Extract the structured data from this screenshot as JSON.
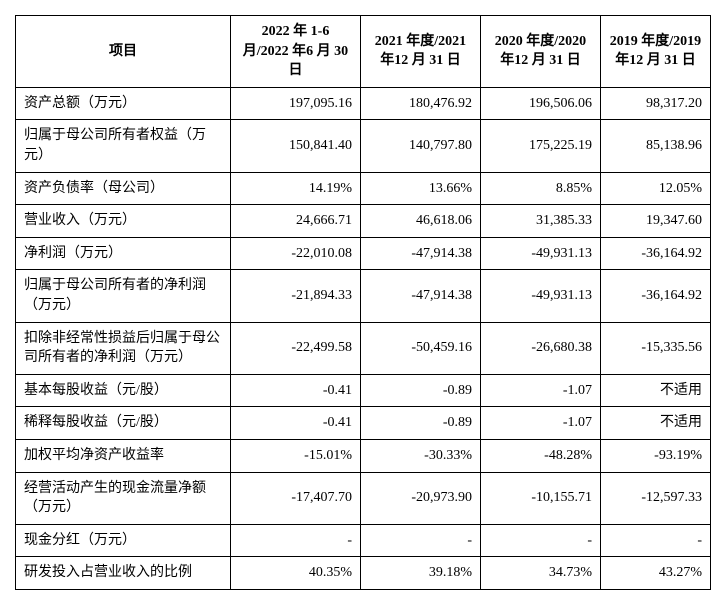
{
  "table": {
    "columns": [
      "项目",
      "2022 年 1-6 月/2022 年6 月 30 日",
      "2021 年度/2021 年12 月 31 日",
      "2020 年度/2020 年12 月 31 日",
      "2019 年度/2019 年12 月 31 日"
    ],
    "rows": [
      {
        "label": "资产总额（万元）",
        "values": [
          "197,095.16",
          "180,476.92",
          "196,506.06",
          "98,317.20"
        ]
      },
      {
        "label": "归属于母公司所有者权益（万元）",
        "values": [
          "150,841.40",
          "140,797.80",
          "175,225.19",
          "85,138.96"
        ]
      },
      {
        "label": "资产负债率（母公司）",
        "values": [
          "14.19%",
          "13.66%",
          "8.85%",
          "12.05%"
        ]
      },
      {
        "label": "营业收入（万元）",
        "values": [
          "24,666.71",
          "46,618.06",
          "31,385.33",
          "19,347.60"
        ]
      },
      {
        "label": "净利润（万元）",
        "values": [
          "-22,010.08",
          "-47,914.38",
          "-49,931.13",
          "-36,164.92"
        ]
      },
      {
        "label": "归属于母公司所有者的净利润（万元）",
        "values": [
          "-21,894.33",
          "-47,914.38",
          "-49,931.13",
          "-36,164.92"
        ]
      },
      {
        "label": "扣除非经常性损益后归属于母公司所有者的净利润（万元）",
        "values": [
          "-22,499.58",
          "-50,459.16",
          "-26,680.38",
          "-15,335.56"
        ]
      },
      {
        "label": "基本每股收益（元/股）",
        "values": [
          "-0.41",
          "-0.89",
          "-1.07",
          "不适用"
        ]
      },
      {
        "label": "稀释每股收益（元/股）",
        "values": [
          "-0.41",
          "-0.89",
          "-1.07",
          "不适用"
        ]
      },
      {
        "label": "加权平均净资产收益率",
        "values": [
          "-15.01%",
          "-30.33%",
          "-48.28%",
          "-93.19%"
        ]
      },
      {
        "label": "经营活动产生的现金流量净额（万元）",
        "values": [
          "-17,407.70",
          "-20,973.90",
          "-10,155.71",
          "-12,597.33"
        ]
      },
      {
        "label": "现金分红（万元）",
        "values": [
          "-",
          "-",
          "-",
          "-"
        ]
      },
      {
        "label": "研发投入占营业收入的比例",
        "values": [
          "40.35%",
          "39.18%",
          "34.73%",
          "43.27%"
        ]
      }
    ]
  }
}
